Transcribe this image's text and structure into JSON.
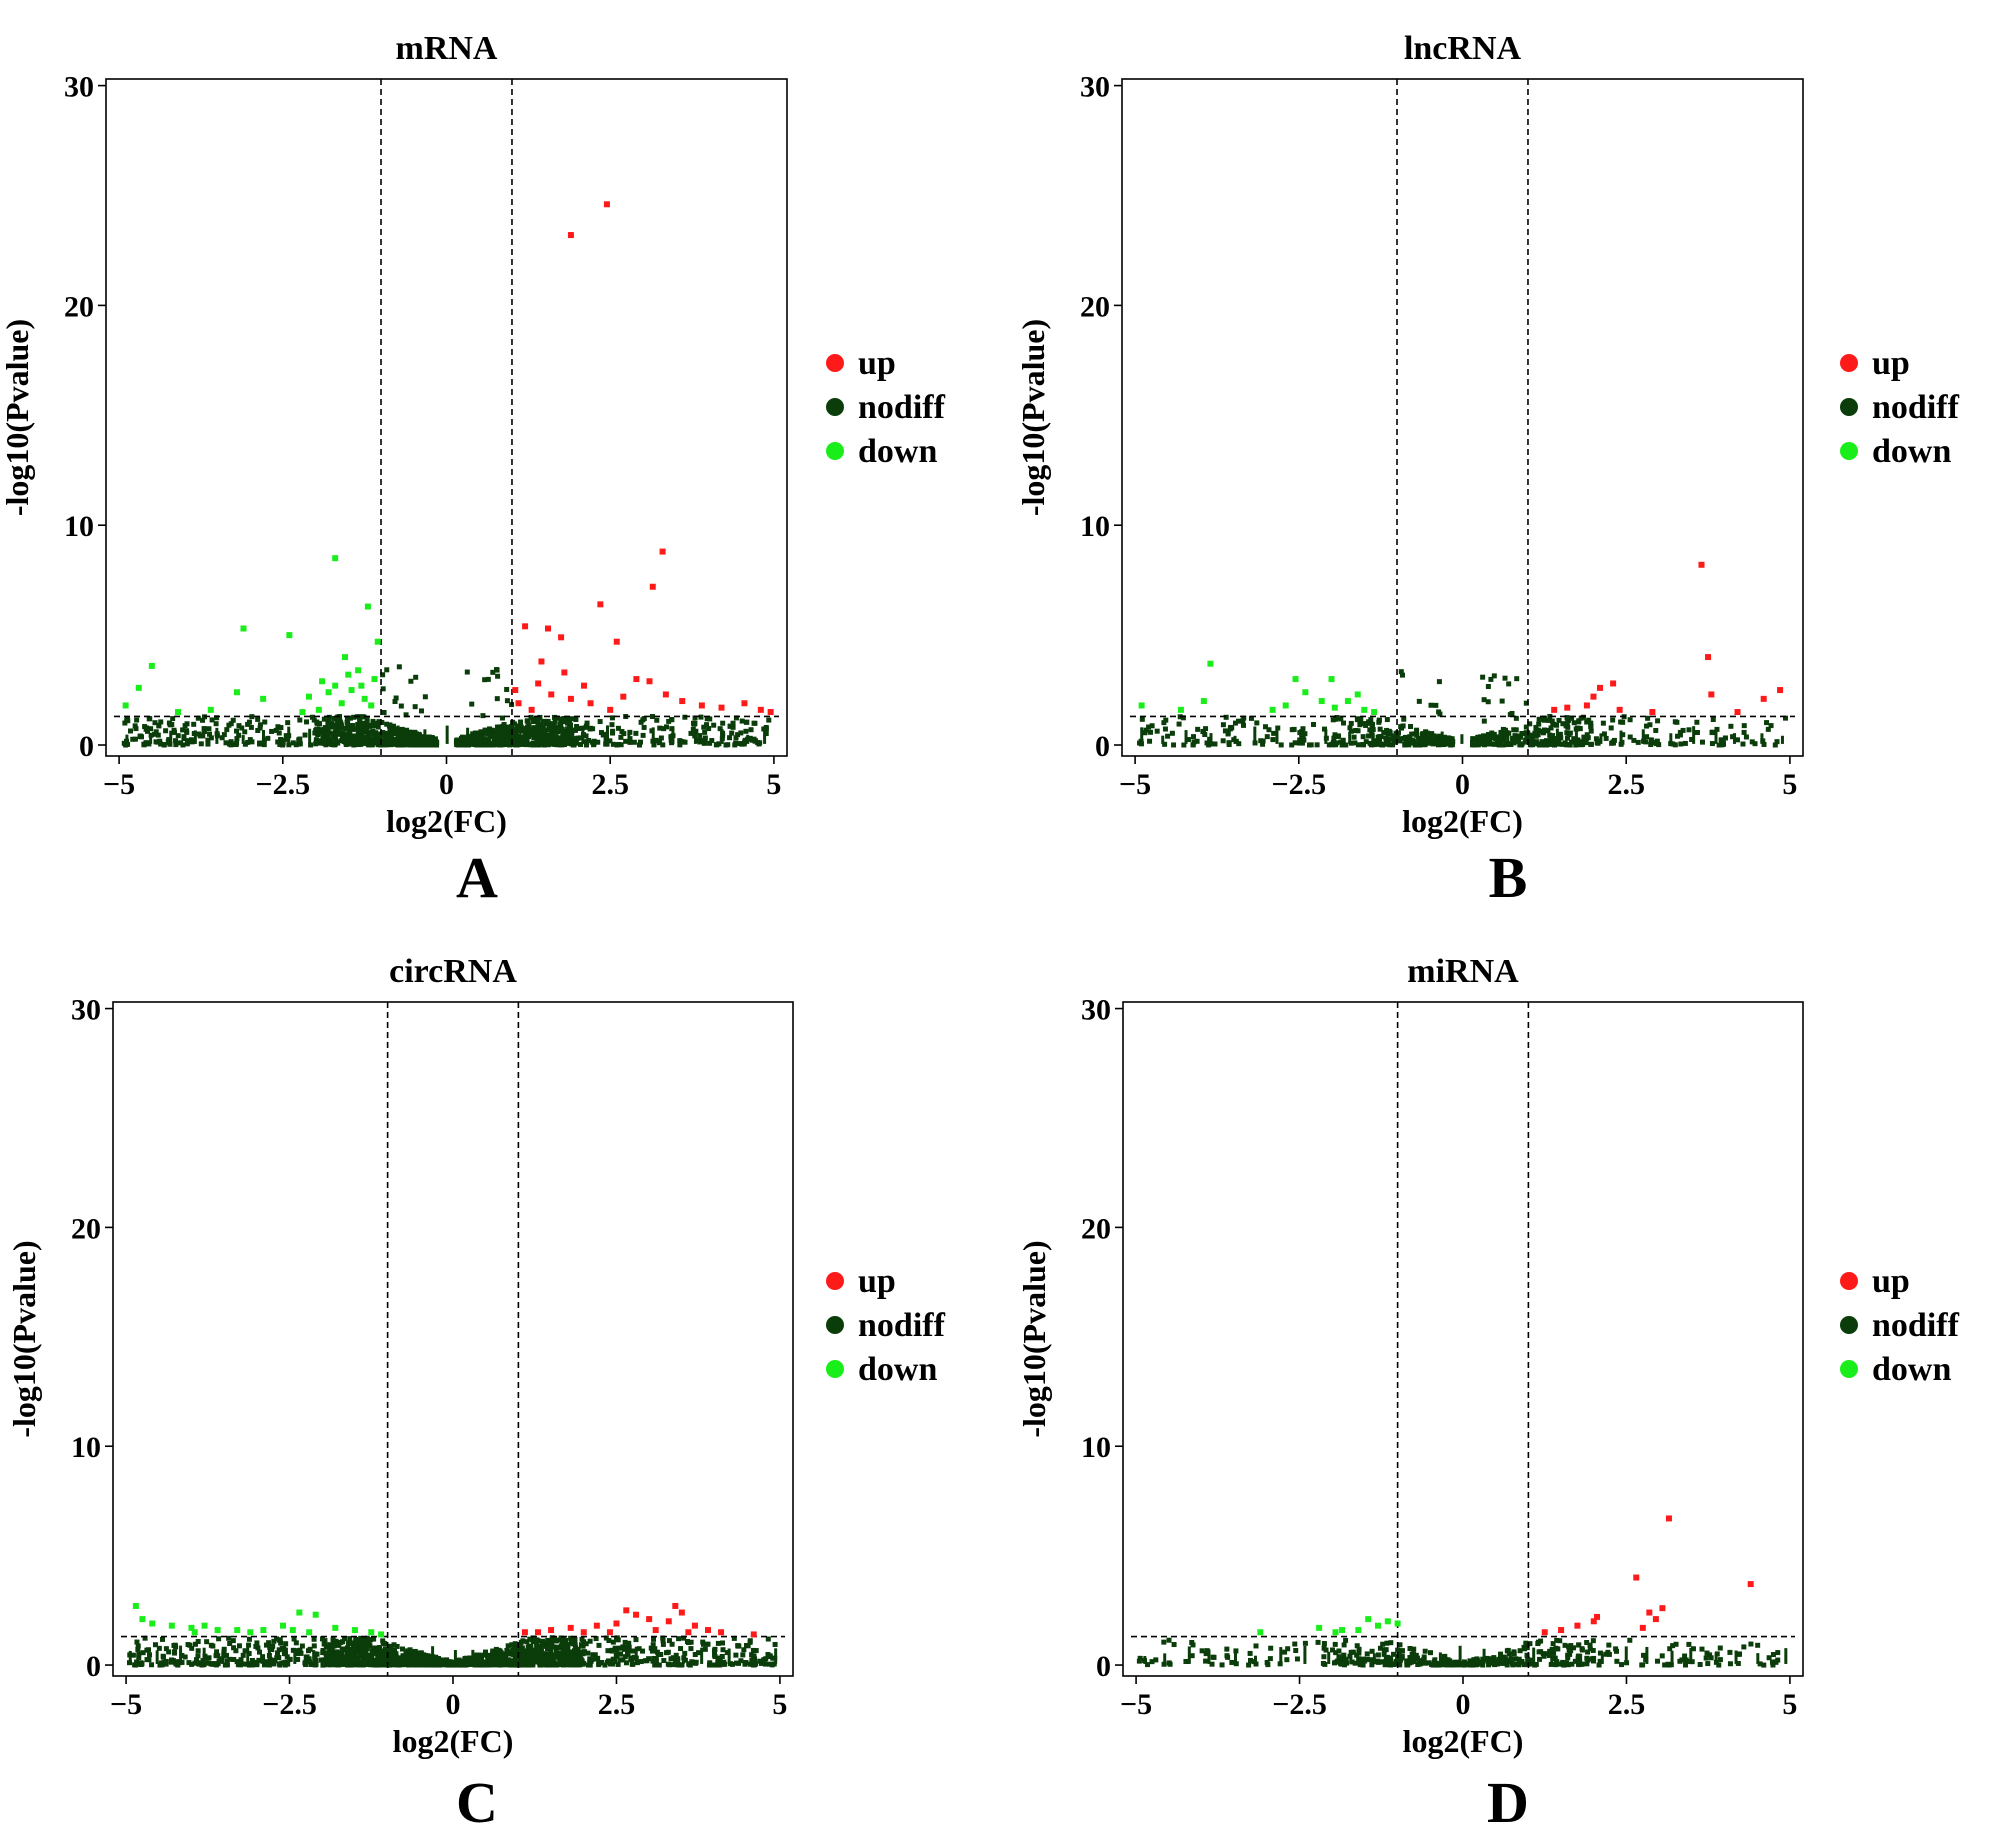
{
  "colors": {
    "up": "#ff1a1a",
    "nodiff": "#0b3d0b",
    "down": "#1aee1a"
  },
  "legend": {
    "up": "up",
    "nodiff": "nodiff",
    "down": "down"
  },
  "chart_data": [
    {
      "type": "scatter",
      "panel_label": "A",
      "title": "mRNA",
      "xlabel": "log2(FC)",
      "ylabel": "-log10(Pvalue)",
      "xlim": [
        -5.2,
        5.2
      ],
      "ylim": [
        -0.5,
        30.3
      ],
      "xticks": [
        -5,
        -2.5,
        0,
        2.5,
        5
      ],
      "xtick_labels": [
        "−5",
        "−2.5",
        "0",
        "2.5",
        "5"
      ],
      "yticks": [
        0,
        10,
        20,
        30
      ],
      "ytick_labels": [
        "0",
        "10",
        "20",
        "30"
      ],
      "thresholds": {
        "fc_lines": [
          -1,
          1
        ],
        "pvalue_line": 1.3
      },
      "legend_position": "right",
      "density": {
        "bulk_count": 1300,
        "base_max": 2.2,
        "spike_count": 28,
        "min_abs_x": 0.15
      },
      "series": [
        {
          "name": "up",
          "points": [
            [
              2.45,
              24.6
            ],
            [
              1.9,
              23.2
            ],
            [
              3.3,
              8.8
            ],
            [
              3.15,
              7.2
            ],
            [
              2.35,
              6.4
            ],
            [
              1.2,
              5.4
            ],
            [
              1.55,
              5.3
            ],
            [
              1.75,
              4.9
            ],
            [
              2.6,
              4.7
            ],
            [
              2.9,
              3.0
            ],
            [
              3.1,
              2.9
            ],
            [
              2.1,
              2.7
            ],
            [
              1.4,
              2.8
            ],
            [
              1.6,
              2.3
            ],
            [
              1.9,
              2.1
            ],
            [
              2.2,
              1.9
            ],
            [
              3.6,
              2.0
            ],
            [
              3.9,
              1.8
            ],
            [
              4.2,
              1.7
            ],
            [
              4.55,
              1.9
            ],
            [
              4.8,
              1.6
            ],
            [
              4.95,
              1.5
            ],
            [
              1.1,
              1.9
            ],
            [
              1.3,
              1.6
            ],
            [
              2.5,
              1.6
            ],
            [
              1.05,
              2.5
            ],
            [
              1.8,
              3.3
            ],
            [
              2.7,
              2.2
            ],
            [
              3.35,
              2.3
            ],
            [
              1.45,
              3.8
            ]
          ]
        },
        {
          "name": "down",
          "points": [
            [
              -1.7,
              8.5
            ],
            [
              -1.2,
              6.3
            ],
            [
              -3.1,
              5.3
            ],
            [
              -2.4,
              5.0
            ],
            [
              -4.5,
              3.6
            ],
            [
              -4.7,
              2.6
            ],
            [
              -4.9,
              1.8
            ],
            [
              -3.2,
              2.4
            ],
            [
              -2.8,
              2.1
            ],
            [
              -1.55,
              4.0
            ],
            [
              -1.35,
              3.4
            ],
            [
              -1.1,
              3.0
            ],
            [
              -1.9,
              2.9
            ],
            [
              -2.1,
              2.2
            ],
            [
              -1.25,
              2.1
            ],
            [
              -1.45,
              2.5
            ],
            [
              -1.6,
              1.9
            ],
            [
              -4.1,
              1.5
            ],
            [
              -3.6,
              1.6
            ],
            [
              -2.2,
              1.5
            ],
            [
              -1.05,
              4.7
            ],
            [
              -1.3,
              2.7
            ],
            [
              -1.15,
              1.8
            ],
            [
              -1.8,
              2.4
            ],
            [
              -1.5,
              3.2
            ],
            [
              -1.7,
              2.7
            ],
            [
              -1.95,
              1.6
            ]
          ]
        }
      ]
    },
    {
      "type": "scatter",
      "panel_label": "B",
      "title": "lncRNA",
      "xlabel": "log2(FC)",
      "ylabel": "-log10(Pvalue)",
      "xlim": [
        -5.2,
        5.2
      ],
      "ylim": [
        -0.5,
        30.3
      ],
      "xticks": [
        -5,
        -2.5,
        0,
        2.5,
        5
      ],
      "xtick_labels": [
        "−5",
        "−2.5",
        "0",
        "2.5",
        "5"
      ],
      "yticks": [
        0,
        10,
        20,
        30
      ],
      "ytick_labels": [
        "0",
        "10",
        "20",
        "30"
      ],
      "thresholds": {
        "fc_lines": [
          -1,
          1
        ],
        "pvalue_line": 1.3
      },
      "legend_position": "right",
      "density": {
        "bulk_count": 600,
        "base_max": 1.3,
        "spike_count": 24,
        "min_abs_x": 0.15
      },
      "series": [
        {
          "name": "up",
          "points": [
            [
              3.65,
              8.2
            ],
            [
              3.75,
              4.0
            ],
            [
              3.8,
              2.3
            ],
            [
              4.85,
              2.5
            ],
            [
              4.6,
              2.1
            ],
            [
              2.3,
              2.8
            ],
            [
              2.1,
              2.6
            ],
            [
              2.0,
              2.2
            ],
            [
              1.9,
              1.8
            ],
            [
              2.4,
              1.6
            ],
            [
              1.6,
              1.7
            ],
            [
              2.9,
              1.5
            ],
            [
              4.2,
              1.5
            ],
            [
              1.4,
              1.6
            ]
          ]
        },
        {
          "name": "down",
          "points": [
            [
              -3.85,
              3.7
            ],
            [
              -2.55,
              3.0
            ],
            [
              -2.0,
              3.0
            ],
            [
              -2.4,
              2.4
            ],
            [
              -2.7,
              1.8
            ],
            [
              -1.6,
              2.3
            ],
            [
              -1.75,
              2.0
            ],
            [
              -1.95,
              1.7
            ],
            [
              -2.15,
              2.0
            ],
            [
              -1.5,
              1.6
            ],
            [
              -1.35,
              1.5
            ],
            [
              -4.9,
              1.8
            ],
            [
              -3.95,
              2.0
            ],
            [
              -4.3,
              1.6
            ],
            [
              -2.9,
              1.6
            ]
          ]
        }
      ]
    },
    {
      "type": "scatter",
      "panel_label": "C",
      "title": "circRNA",
      "xlabel": "log2(FC)",
      "ylabel": "-log10(Pvalue)",
      "xlim": [
        -5.2,
        5.2
      ],
      "ylim": [
        -0.5,
        30.3
      ],
      "xticks": [
        -5,
        -2.5,
        0,
        2.5,
        5
      ],
      "xtick_labels": [
        "−5",
        "−2.5",
        "0",
        "2.5",
        "5"
      ],
      "yticks": [
        0,
        10,
        20,
        30
      ],
      "ytick_labels": [
        "0",
        "10",
        "20",
        "30"
      ],
      "thresholds": {
        "fc_lines": [
          -1,
          1
        ],
        "pvalue_line": 1.3
      },
      "legend_position": "right",
      "density": {
        "bulk_count": 1500,
        "base_max": 1.1,
        "spike_count": 0,
        "min_abs_x": 0.0
      },
      "series": [
        {
          "name": "up",
          "points": [
            [
              3.4,
              2.7
            ],
            [
              3.5,
              2.4
            ],
            [
              2.65,
              2.5
            ],
            [
              2.8,
              2.3
            ],
            [
              3.0,
              2.1
            ],
            [
              3.3,
              2.0
            ],
            [
              2.5,
              1.9
            ],
            [
              2.2,
              1.8
            ],
            [
              1.8,
              1.7
            ],
            [
              1.5,
              1.6
            ],
            [
              1.3,
              1.5
            ],
            [
              3.7,
              1.8
            ],
            [
              3.9,
              1.6
            ],
            [
              4.1,
              1.5
            ],
            [
              4.6,
              1.4
            ],
            [
              1.1,
              1.5
            ],
            [
              2.0,
              1.5
            ],
            [
              2.4,
              1.5
            ],
            [
              3.1,
              1.6
            ],
            [
              3.6,
              1.5
            ]
          ]
        },
        {
          "name": "down",
          "points": [
            [
              -4.85,
              2.7
            ],
            [
              -4.75,
              2.1
            ],
            [
              -4.6,
              1.9
            ],
            [
              -4.3,
              1.8
            ],
            [
              -4.0,
              1.7
            ],
            [
              -3.8,
              1.8
            ],
            [
              -3.6,
              1.6
            ],
            [
              -2.35,
              2.4
            ],
            [
              -2.1,
              2.3
            ],
            [
              -2.6,
              1.8
            ],
            [
              -2.9,
              1.6
            ],
            [
              -3.3,
              1.6
            ],
            [
              -1.8,
              1.7
            ],
            [
              -1.5,
              1.6
            ],
            [
              -1.25,
              1.5
            ],
            [
              -2.2,
              1.5
            ],
            [
              -3.95,
              1.5
            ],
            [
              -1.1,
              1.4
            ],
            [
              -2.45,
              1.6
            ],
            [
              -3.1,
              1.5
            ]
          ]
        }
      ]
    },
    {
      "type": "scatter",
      "panel_label": "D",
      "title": "miRNA",
      "xlabel": "log2(FC)",
      "ylabel": "-log10(Pvalue)",
      "xlim": [
        -5.2,
        5.2
      ],
      "ylim": [
        -0.5,
        30.3
      ],
      "xticks": [
        -5,
        -2.5,
        0,
        2.5,
        5
      ],
      "xtick_labels": [
        "−5",
        "−2.5",
        "0",
        "2.5",
        "5"
      ],
      "yticks": [
        0,
        10,
        20,
        30
      ],
      "ytick_labels": [
        "0",
        "10",
        "20",
        "30"
      ],
      "thresholds": {
        "fc_lines": [
          -1,
          1
        ],
        "pvalue_line": 1.3
      },
      "legend_position": "right",
      "density": {
        "bulk_count": 420,
        "base_max": 1.0,
        "spike_count": 0,
        "min_abs_x": 0.0
      },
      "series": [
        {
          "name": "up",
          "points": [
            [
              3.15,
              6.7
            ],
            [
              4.4,
              3.7
            ],
            [
              2.65,
              4.0
            ],
            [
              3.05,
              2.6
            ],
            [
              2.85,
              2.4
            ],
            [
              2.95,
              2.1
            ],
            [
              2.05,
              2.2
            ],
            [
              2.0,
              2.0
            ],
            [
              1.75,
              1.8
            ],
            [
              1.5,
              1.6
            ],
            [
              1.25,
              1.5
            ],
            [
              2.75,
              1.7
            ]
          ]
        },
        {
          "name": "down",
          "points": [
            [
              -1.0,
              1.9
            ],
            [
              -1.15,
              2.0
            ],
            [
              -1.3,
              1.8
            ],
            [
              -1.6,
              1.6
            ],
            [
              -2.2,
              1.7
            ],
            [
              -1.95,
              1.5
            ],
            [
              -3.1,
              1.5
            ],
            [
              -1.45,
              2.1
            ],
            [
              -1.85,
              1.6
            ]
          ]
        }
      ]
    }
  ]
}
